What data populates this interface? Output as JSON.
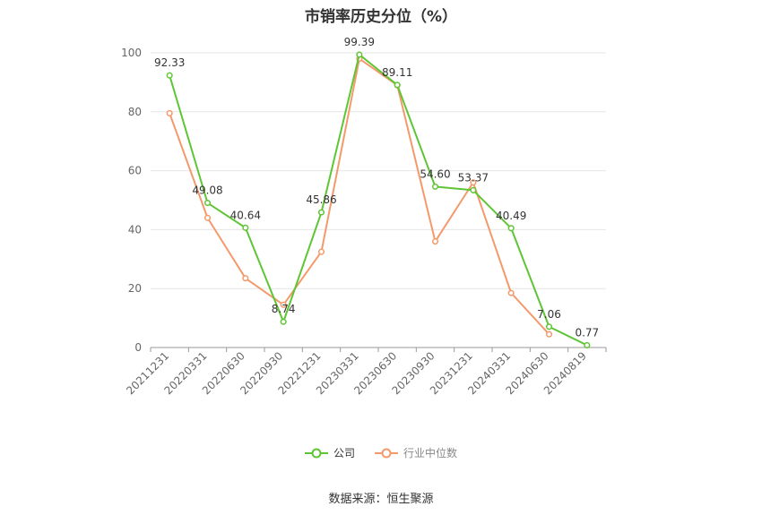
{
  "chart_data": {
    "type": "line",
    "title": "市销率历史分位（%）",
    "categories": [
      "20211231",
      "20220331",
      "20220630",
      "20220930",
      "20221231",
      "20230331",
      "20230630",
      "20230930",
      "20231231",
      "20240331",
      "20240630",
      "20240819"
    ],
    "ylim": [
      0,
      100
    ],
    "yticks": [
      0,
      20,
      40,
      60,
      80,
      100
    ],
    "grid": true,
    "legend_position": "bottom",
    "series": [
      {
        "name": "公司",
        "color": "#5ec534",
        "values": [
          92.33,
          49.08,
          40.64,
          8.74,
          45.86,
          99.39,
          89.11,
          54.6,
          53.37,
          40.49,
          7.06,
          0.77
        ],
        "labels": [
          "92.33",
          "49.08",
          "40.64",
          "8.74",
          "45.86",
          "99.39",
          "89.11",
          "54.60",
          "53.37",
          "40.49",
          "7.06",
          "0.77"
        ]
      },
      {
        "name": "行业中位数",
        "color": "#f4996c",
        "values": [
          79.5,
          44.0,
          23.5,
          14.5,
          32.5,
          98.0,
          89.0,
          36.0,
          56.0,
          18.5,
          4.5,
          null
        ]
      }
    ]
  },
  "legend": {
    "company": "公司",
    "industry": "行业中位数"
  },
  "source": "数据来源：恒生聚源"
}
